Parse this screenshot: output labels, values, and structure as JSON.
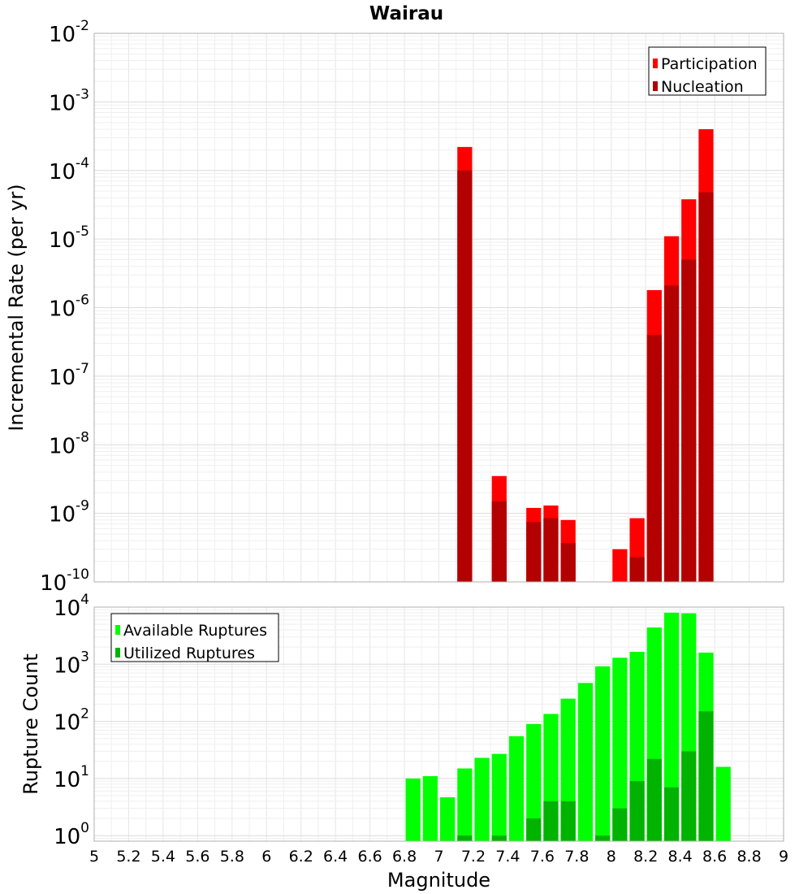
{
  "chart_data": [
    {
      "type": "bar",
      "title": "Wairau",
      "xlabel": "Magnitude",
      "ylabel": "Incremental Rate (per yr)",
      "yscale": "log",
      "ylim": [
        1e-10,
        0.01
      ],
      "xlim": [
        5,
        9
      ],
      "bin_width": 0.1,
      "grid": true,
      "legend_position": "top-right",
      "ytick_labels": [
        {
          "base": "10",
          "exp": "-10"
        },
        {
          "base": "10",
          "exp": "-9"
        },
        {
          "base": "10",
          "exp": "-8"
        },
        {
          "base": "10",
          "exp": "-7"
        },
        {
          "base": "10",
          "exp": "-6"
        },
        {
          "base": "10",
          "exp": "-5"
        },
        {
          "base": "10",
          "exp": "-4"
        },
        {
          "base": "10",
          "exp": "-3"
        },
        {
          "base": "10",
          "exp": "-2"
        }
      ],
      "series": [
        {
          "name": "Participation",
          "color": "#ff0000",
          "points": [
            {
              "x": 7.15,
              "y": 0.00022
            },
            {
              "x": 7.35,
              "y": 3.5e-09
            },
            {
              "x": 7.55,
              "y": 1.2e-09
            },
            {
              "x": 7.65,
              "y": 1.3e-09
            },
            {
              "x": 7.75,
              "y": 8e-10
            },
            {
              "x": 8.05,
              "y": 3e-10
            },
            {
              "x": 8.15,
              "y": 8.5e-10
            },
            {
              "x": 8.25,
              "y": 1.8e-06
            },
            {
              "x": 8.35,
              "y": 1.1e-05
            },
            {
              "x": 8.45,
              "y": 3.8e-05
            },
            {
              "x": 8.55,
              "y": 0.0004
            }
          ]
        },
        {
          "name": "Nucleation",
          "color": "#b30000",
          "points": [
            {
              "x": 7.15,
              "y": 0.0001
            },
            {
              "x": 7.35,
              "y": 1.5e-09
            },
            {
              "x": 7.55,
              "y": 7.5e-10
            },
            {
              "x": 7.65,
              "y": 8.5e-10
            },
            {
              "x": 7.75,
              "y": 3.7e-10
            },
            {
              "x": 8.15,
              "y": 2.3e-10
            },
            {
              "x": 8.25,
              "y": 4e-07
            },
            {
              "x": 8.35,
              "y": 2.1e-06
            },
            {
              "x": 8.45,
              "y": 5e-06
            },
            {
              "x": 8.55,
              "y": 4.8e-05
            }
          ]
        }
      ]
    },
    {
      "type": "bar",
      "title": "",
      "xlabel": "Magnitude",
      "ylabel": "Rupture Count",
      "yscale": "log",
      "ylim": [
        0.8,
        10000
      ],
      "xlim": [
        5,
        9
      ],
      "bin_width": 0.1,
      "grid": true,
      "legend_position": "top-left",
      "xtick_labels": [
        "5",
        "5.2",
        "5.4",
        "5.6",
        "5.8",
        "6",
        "6.2",
        "6.4",
        "6.6",
        "6.8",
        "7",
        "7.2",
        "7.4",
        "7.6",
        "7.8",
        "8",
        "8.2",
        "8.4",
        "8.6",
        "8.8",
        "9"
      ],
      "ytick_labels": [
        {
          "base": "10",
          "exp": "0"
        },
        {
          "base": "10",
          "exp": "1"
        },
        {
          "base": "10",
          "exp": "2"
        },
        {
          "base": "10",
          "exp": "3"
        },
        {
          "base": "10",
          "exp": "4"
        }
      ],
      "series": [
        {
          "name": "Available Ruptures",
          "color": "#00ff00",
          "points": [
            {
              "x": 6.85,
              "y": 10
            },
            {
              "x": 6.95,
              "y": 11
            },
            {
              "x": 7.05,
              "y": 4.7
            },
            {
              "x": 7.15,
              "y": 15
            },
            {
              "x": 7.25,
              "y": 23
            },
            {
              "x": 7.35,
              "y": 27
            },
            {
              "x": 7.45,
              "y": 55
            },
            {
              "x": 7.55,
              "y": 90
            },
            {
              "x": 7.65,
              "y": 135
            },
            {
              "x": 7.75,
              "y": 250
            },
            {
              "x": 7.85,
              "y": 470
            },
            {
              "x": 7.95,
              "y": 920
            },
            {
              "x": 8.05,
              "y": 1300
            },
            {
              "x": 8.15,
              "y": 1650
            },
            {
              "x": 8.25,
              "y": 4400
            },
            {
              "x": 8.35,
              "y": 8000
            },
            {
              "x": 8.45,
              "y": 7800
            },
            {
              "x": 8.55,
              "y": 1600
            },
            {
              "x": 8.65,
              "y": 16
            }
          ]
        },
        {
          "name": "Utilized Ruptures",
          "color": "#00b300",
          "points": [
            {
              "x": 7.15,
              "y": 1
            },
            {
              "x": 7.35,
              "y": 1
            },
            {
              "x": 7.55,
              "y": 2
            },
            {
              "x": 7.65,
              "y": 4
            },
            {
              "x": 7.75,
              "y": 4
            },
            {
              "x": 7.95,
              "y": 1
            },
            {
              "x": 8.05,
              "y": 3
            },
            {
              "x": 8.15,
              "y": 9
            },
            {
              "x": 8.25,
              "y": 22
            },
            {
              "x": 8.35,
              "y": 7
            },
            {
              "x": 8.45,
              "y": 30
            },
            {
              "x": 8.55,
              "y": 150
            }
          ]
        }
      ]
    }
  ]
}
